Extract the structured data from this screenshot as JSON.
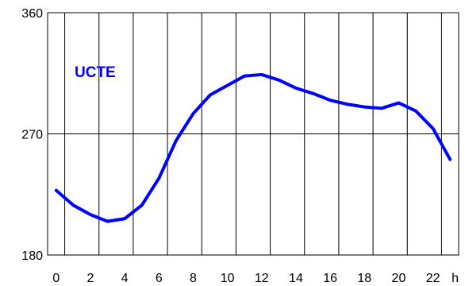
{
  "chart_data": {
    "type": "line",
    "title": "",
    "xlabel": "",
    "ylabel": "",
    "x_unit_label": "h",
    "xlim": [
      -0.5,
      23.5
    ],
    "ylim": [
      180,
      360
    ],
    "x_ticks": [
      0,
      2,
      4,
      6,
      8,
      10,
      12,
      14,
      16,
      18,
      20,
      22
    ],
    "y_ticks": [
      180,
      270,
      360
    ],
    "grid": {
      "vertical": true,
      "horizontal": true
    },
    "line_color": "#0000ff",
    "series": [
      {
        "name": "UCTE",
        "x": [
          0,
          1,
          2,
          3,
          4,
          5,
          6,
          7,
          8,
          9,
          10,
          11,
          12,
          13,
          14,
          15,
          16,
          17,
          18,
          19,
          20,
          21,
          22,
          23
        ],
        "values": [
          228,
          217,
          210,
          205,
          207,
          217,
          237,
          265,
          285,
          299,
          306,
          313,
          314,
          310,
          304,
          300,
          295,
          292,
          290,
          289,
          293,
          287,
          274,
          251
        ]
      }
    ]
  }
}
